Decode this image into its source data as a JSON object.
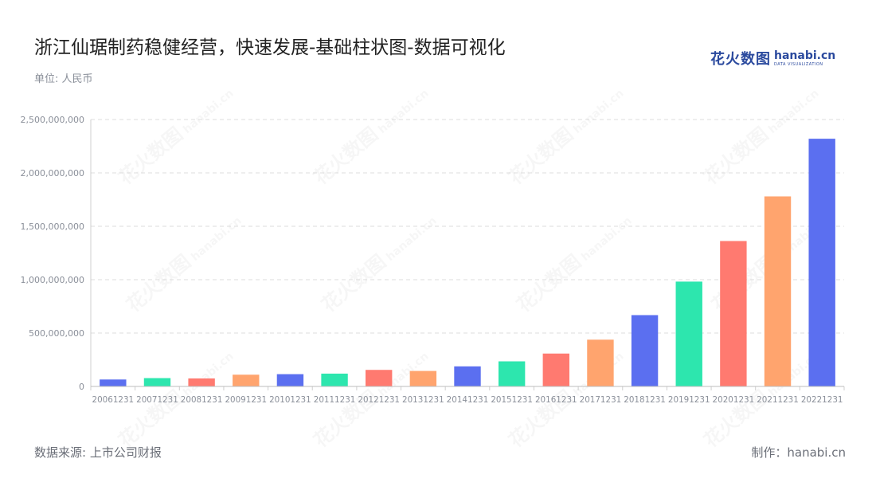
{
  "header": {
    "title": "浙江仙琚制药稳健经营，快速发展-基础柱状图-数据可视化",
    "unit": "单位: 人民币",
    "logo_cn": "花火数图",
    "logo_en": "hanabi.cn",
    "logo_sub": "DATA VISUALIZATION"
  },
  "footer": {
    "source": "数据来源: 上市公司财报",
    "credit": "制作：hanabi.cn"
  },
  "watermark": {
    "text": "花火数图",
    "suffix": "hanabi.cn"
  },
  "chart_data": {
    "type": "bar",
    "title": "浙江仙琚制药稳健经营，快速发展-基础柱状图-数据可视化",
    "xlabel": "",
    "ylabel": "",
    "ylim": [
      0,
      2500000000
    ],
    "yticks": [
      0,
      500000000,
      1000000000,
      1500000000,
      2000000000,
      2500000000
    ],
    "ytick_labels": [
      "0",
      "500,000,000",
      "1,000,000,000",
      "1,500,000,000",
      "2,000,000,000",
      "2,500,000,000"
    ],
    "grid": true,
    "categories": [
      "20061231",
      "20071231",
      "20081231",
      "20091231",
      "20101231",
      "20111231",
      "20121231",
      "20131231",
      "20141231",
      "20151231",
      "20161231",
      "20171231",
      "20181231",
      "20191231",
      "20201231",
      "20211231",
      "20221231"
    ],
    "values": [
      65000000,
      78000000,
      75000000,
      110000000,
      115000000,
      120000000,
      155000000,
      145000000,
      188000000,
      235000000,
      308000000,
      438000000,
      668000000,
      982000000,
      1362000000,
      1780000000,
      2320000000
    ],
    "colors": [
      "#5b6ff0",
      "#2de6ae",
      "#ff7a70",
      "#ffa46e"
    ]
  }
}
